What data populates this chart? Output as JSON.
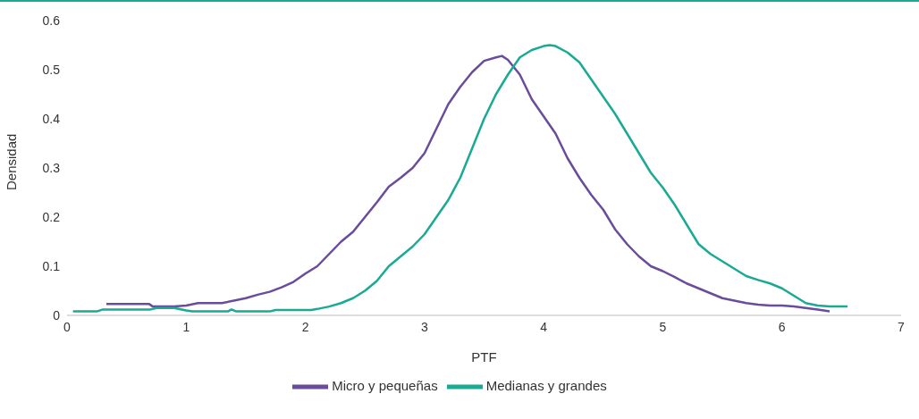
{
  "chart_data": {
    "type": "line",
    "xlabel": "PTF",
    "ylabel": "Densidad",
    "xlim": [
      0,
      7
    ],
    "xticks": [
      0,
      1,
      2,
      3,
      4,
      5,
      6,
      7
    ],
    "ylim": [
      0,
      0.6
    ],
    "yticks": [
      0,
      0.1,
      0.2,
      0.3,
      0.4,
      0.5,
      0.6
    ],
    "grid": false,
    "legend": "bottom",
    "marker": "none",
    "line_style": "solid",
    "series": [
      {
        "name": "Micro y pequeñas",
        "color": "#6a4c9c",
        "x": [
          0.33,
          0.69,
          0.72,
          0.9,
          1.0,
          1.1,
          1.3,
          1.4,
          1.5,
          1.6,
          1.7,
          1.8,
          1.9,
          2.0,
          2.1,
          2.2,
          2.3,
          2.4,
          2.5,
          2.6,
          2.7,
          2.8,
          2.9,
          3.0,
          3.1,
          3.2,
          3.3,
          3.4,
          3.5,
          3.6,
          3.65,
          3.7,
          3.8,
          3.9,
          4.0,
          4.1,
          4.2,
          4.3,
          4.4,
          4.5,
          4.6,
          4.7,
          4.8,
          4.9,
          5.0,
          5.1,
          5.2,
          5.3,
          5.4,
          5.5,
          5.6,
          5.7,
          5.8,
          5.9,
          6.0,
          6.1,
          6.2,
          6.3,
          6.4
        ],
        "values": [
          0.023,
          0.023,
          0.018,
          0.018,
          0.02,
          0.025,
          0.025,
          0.03,
          0.035,
          0.042,
          0.048,
          0.057,
          0.068,
          0.085,
          0.1,
          0.125,
          0.15,
          0.17,
          0.2,
          0.23,
          0.262,
          0.28,
          0.3,
          0.33,
          0.38,
          0.43,
          0.465,
          0.495,
          0.518,
          0.525,
          0.528,
          0.52,
          0.49,
          0.44,
          0.405,
          0.37,
          0.32,
          0.28,
          0.245,
          0.215,
          0.175,
          0.145,
          0.12,
          0.1,
          0.09,
          0.078,
          0.065,
          0.055,
          0.045,
          0.035,
          0.03,
          0.025,
          0.022,
          0.02,
          0.02,
          0.018,
          0.015,
          0.012,
          0.008
        ]
      },
      {
        "name": "Medianas y grandes",
        "color": "#1aaa94",
        "x": [
          0.05,
          0.25,
          0.3,
          0.7,
          0.75,
          0.9,
          1.0,
          1.05,
          1.35,
          1.38,
          1.42,
          1.7,
          1.75,
          2.05,
          2.1,
          2.2,
          2.3,
          2.4,
          2.5,
          2.6,
          2.7,
          2.8,
          2.9,
          3.0,
          3.1,
          3.2,
          3.3,
          3.4,
          3.5,
          3.6,
          3.7,
          3.8,
          3.9,
          4.0,
          4.05,
          4.1,
          4.2,
          4.3,
          4.4,
          4.5,
          4.6,
          4.7,
          4.8,
          4.9,
          5.0,
          5.1,
          5.2,
          5.3,
          5.4,
          5.5,
          5.6,
          5.7,
          5.8,
          5.9,
          6.0,
          6.1,
          6.2,
          6.3,
          6.4,
          6.55
        ],
        "values": [
          0.008,
          0.008,
          0.012,
          0.012,
          0.015,
          0.015,
          0.01,
          0.008,
          0.008,
          0.012,
          0.008,
          0.008,
          0.011,
          0.011,
          0.013,
          0.018,
          0.025,
          0.035,
          0.05,
          0.07,
          0.1,
          0.12,
          0.14,
          0.165,
          0.2,
          0.235,
          0.28,
          0.34,
          0.4,
          0.45,
          0.49,
          0.525,
          0.54,
          0.548,
          0.55,
          0.548,
          0.535,
          0.515,
          0.48,
          0.445,
          0.41,
          0.37,
          0.33,
          0.29,
          0.26,
          0.225,
          0.185,
          0.145,
          0.125,
          0.11,
          0.095,
          0.08,
          0.072,
          0.065,
          0.055,
          0.04,
          0.025,
          0.02,
          0.018,
          0.018
        ]
      }
    ]
  }
}
